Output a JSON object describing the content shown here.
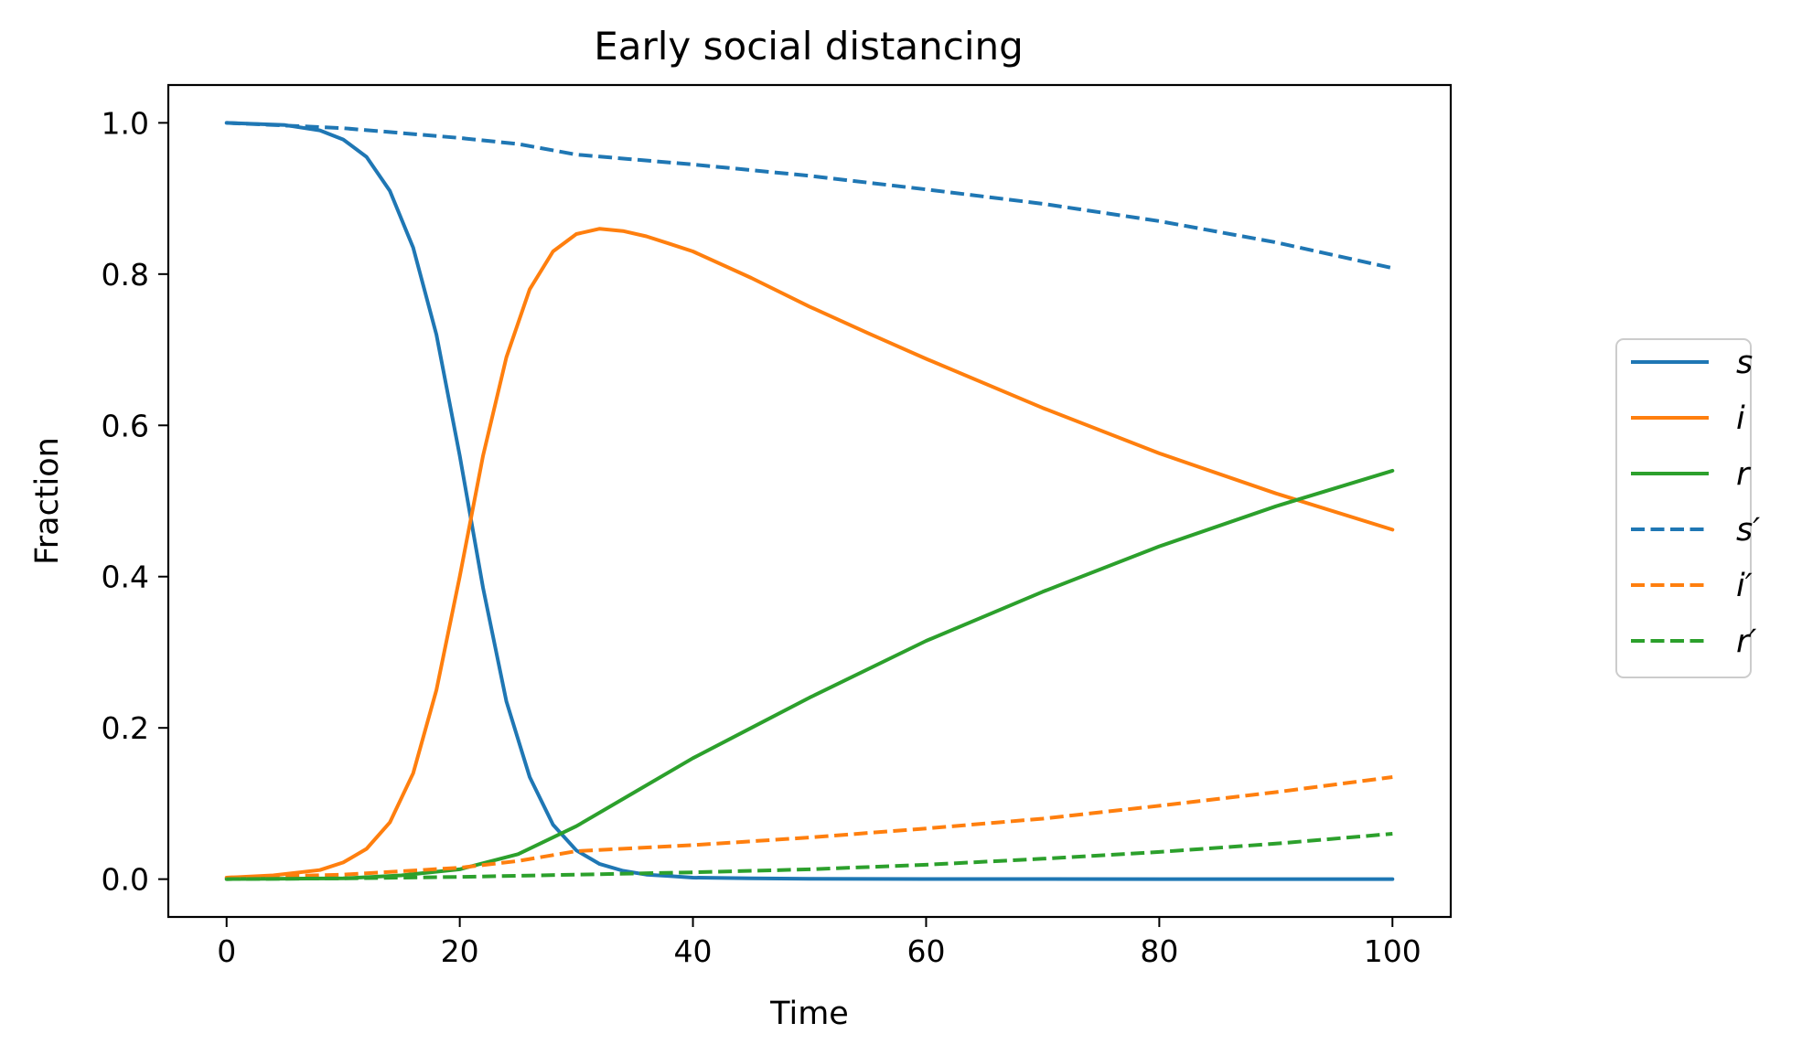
{
  "chart_data": {
    "type": "line",
    "title": "Early social distancing",
    "xlabel": "Time",
    "ylabel": "Fraction",
    "xlim": [
      -5,
      105
    ],
    "ylim": [
      -0.05,
      1.05
    ],
    "xticks": [
      0,
      20,
      40,
      60,
      80,
      100
    ],
    "xtick_labels": [
      "0",
      "20",
      "40",
      "60",
      "80",
      "100"
    ],
    "yticks": [
      0.0,
      0.2,
      0.4,
      0.6,
      0.8,
      1.0
    ],
    "ytick_labels": [
      "0.0",
      "0.2",
      "0.4",
      "0.6",
      "0.8",
      "1.0"
    ],
    "grid": false,
    "legend_position": "center-right outside",
    "series": [
      {
        "name": "s",
        "legend_label": "s",
        "color": "#1f77b4",
        "linestyle": "solid",
        "x": [
          0,
          5,
          8,
          10,
          12,
          14,
          16,
          18,
          20,
          22,
          24,
          26,
          28,
          30,
          32,
          34,
          36,
          38,
          40,
          45,
          50,
          60,
          80,
          100
        ],
        "y": [
          1.0,
          0.997,
          0.99,
          0.978,
          0.955,
          0.91,
          0.835,
          0.72,
          0.56,
          0.385,
          0.235,
          0.135,
          0.072,
          0.038,
          0.02,
          0.011,
          0.006,
          0.004,
          0.002,
          0.001,
          0.0005,
          0.0002,
          0.0001,
          0.0
        ]
      },
      {
        "name": "i",
        "legend_label": "i",
        "color": "#ff7f0e",
        "linestyle": "solid",
        "x": [
          0,
          4,
          8,
          10,
          12,
          14,
          16,
          18,
          20,
          22,
          24,
          26,
          28,
          30,
          32,
          34,
          36,
          38,
          40,
          45,
          50,
          55,
          60,
          70,
          80,
          90,
          100
        ],
        "y": [
          0.002,
          0.005,
          0.012,
          0.022,
          0.04,
          0.075,
          0.14,
          0.25,
          0.4,
          0.56,
          0.69,
          0.78,
          0.83,
          0.853,
          0.86,
          0.857,
          0.85,
          0.84,
          0.83,
          0.795,
          0.757,
          0.722,
          0.688,
          0.623,
          0.563,
          0.51,
          0.462
        ]
      },
      {
        "name": "r",
        "legend_label": "r",
        "color": "#2ca02c",
        "linestyle": "solid",
        "x": [
          0,
          10,
          15,
          20,
          25,
          30,
          35,
          40,
          45,
          50,
          60,
          70,
          80,
          90,
          100
        ],
        "y": [
          0.0,
          0.001,
          0.005,
          0.013,
          0.033,
          0.07,
          0.115,
          0.16,
          0.2,
          0.24,
          0.315,
          0.38,
          0.44,
          0.493,
          0.54
        ]
      },
      {
        "name": "s′",
        "legend_label": "s′",
        "color": "#1f77b4",
        "linestyle": "dashed",
        "x": [
          0,
          10,
          20,
          25,
          30,
          40,
          50,
          60,
          70,
          80,
          90,
          100
        ],
        "y": [
          1.0,
          0.993,
          0.98,
          0.972,
          0.958,
          0.945,
          0.93,
          0.912,
          0.893,
          0.87,
          0.842,
          0.808
        ]
      },
      {
        "name": "i′",
        "legend_label": "i′",
        "color": "#ff7f0e",
        "linestyle": "dashed",
        "x": [
          0,
          10,
          20,
          25,
          30,
          40,
          50,
          60,
          70,
          80,
          90,
          100
        ],
        "y": [
          0.002,
          0.006,
          0.015,
          0.024,
          0.037,
          0.045,
          0.055,
          0.067,
          0.08,
          0.097,
          0.115,
          0.135
        ]
      },
      {
        "name": "r′",
        "legend_label": "r′",
        "color": "#2ca02c",
        "linestyle": "dashed",
        "x": [
          0,
          10,
          20,
          30,
          40,
          50,
          60,
          70,
          80,
          90,
          100
        ],
        "y": [
          0.0,
          0.001,
          0.003,
          0.006,
          0.009,
          0.013,
          0.019,
          0.027,
          0.036,
          0.047,
          0.06
        ]
      }
    ]
  }
}
